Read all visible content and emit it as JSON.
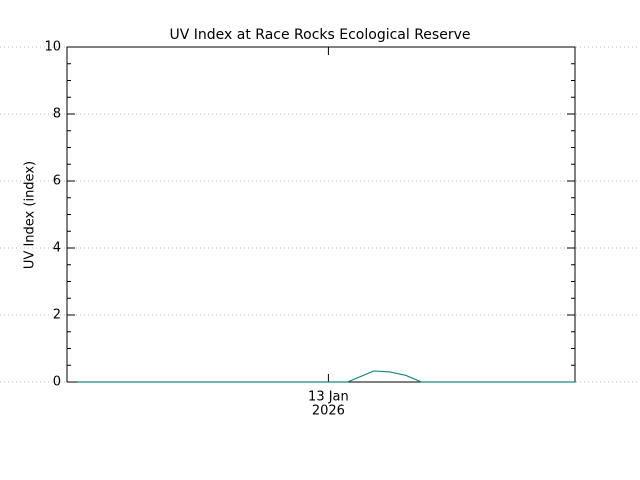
{
  "chart_data": {
    "type": "line",
    "title": "UV Index at Race Rocks Ecological Reserve",
    "ylabel": "UV Index (index)",
    "x": [
      1,
      26.5,
      29,
      30.5,
      32,
      33.5,
      48
    ],
    "series": [
      {
        "name": "UV Index",
        "color": "#178a7c",
        "values": [
          0,
          0,
          0.33,
          0.3,
          0.2,
          0,
          0
        ]
      }
    ],
    "xlim": [
      0,
      48
    ],
    "xticks": [
      {
        "value": 24.7,
        "label": [
          "13 Jan",
          "2026"
        ]
      }
    ],
    "ylim": [
      0,
      10
    ],
    "yticks": [
      0,
      2,
      4,
      6,
      8,
      10
    ],
    "grid": true
  }
}
